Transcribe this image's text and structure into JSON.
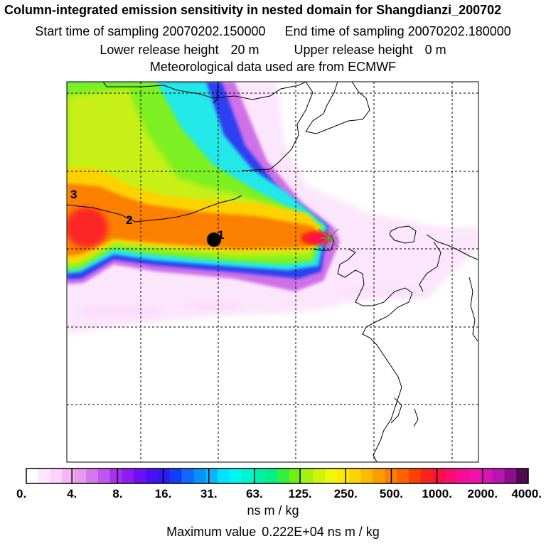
{
  "header": {
    "title": "Column-integrated emission sensitivity in nested domain for Shangdianzi_200702",
    "start_label": "Start time of sampling",
    "start_value": "20070202.150000",
    "end_label": "End time of sampling",
    "end_value": "20070202.180000",
    "lower_label": "Lower release height",
    "lower_value": "20 m",
    "upper_label": "Upper release height",
    "upper_value": "0 m",
    "met": "Meteorological data used are from ECMWF"
  },
  "map": {
    "trajectory_labels": [
      "1",
      "2",
      "3"
    ],
    "receptor": "Shangdianzi",
    "colors": {
      "coast": "#000000",
      "grid": "#000000",
      "plume_core": "#ff1050"
    }
  },
  "colorbar": {
    "tick_labels": [
      "0.",
      "4.",
      "8.",
      "16.",
      "31.",
      "63.",
      "125.",
      "250.",
      "500.",
      "1000.",
      "2000.",
      "4000."
    ],
    "unit": "ns m / kg",
    "colors": [
      "#ffffff",
      "#ffe6ff",
      "#fcd2fc",
      "#f4b6f4",
      "#e89aee",
      "#d678ee",
      "#c156ee",
      "#a830f0",
      "#8c1cf2",
      "#6a10f2",
      "#4a10f2",
      "#2d1cf2",
      "#1040f6",
      "#1068f8",
      "#0a90fa",
      "#08b6fc",
      "#00e2ff",
      "#00f6f2",
      "#00f4d2",
      "#00f2aa",
      "#00f088",
      "#30f040",
      "#70f010",
      "#a8f010",
      "#d0f40a",
      "#f0f80a",
      "#fcea00",
      "#fcd400",
      "#fcba00",
      "#fc9e00",
      "#fc8000",
      "#fc6200",
      "#fc4000",
      "#fc2020",
      "#fc1040",
      "#fc0c70",
      "#f80c96",
      "#ec12aa",
      "#d814b4",
      "#b814b4",
      "#8c108c",
      "#500a50"
    ]
  },
  "footer": {
    "max_label": "Maximum value",
    "max_value": "0.222E+04 ns m / kg"
  }
}
